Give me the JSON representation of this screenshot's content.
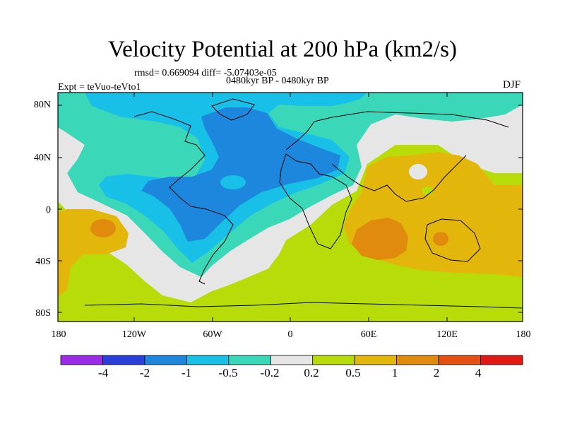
{
  "header": {
    "title": "Velocity Potential at 200 hPa (km2/s)",
    "stats": "rmsd= 0.669094 diff= -5.07403e-05",
    "period": "0480kyr BP - 0480kyr BP",
    "experiment": "Expt = teVuo-teVto1",
    "season": "DJF"
  },
  "axes": {
    "lat_labels": [
      "80N",
      "40N",
      "0",
      "40S",
      "80S"
    ],
    "lon_labels": [
      "180",
      "120W",
      "60W",
      "0",
      "60E",
      "120E",
      "180"
    ]
  },
  "colorbar": {
    "labels": [
      "-4",
      "-2",
      "-1",
      "-0.5",
      "-0.2",
      "0.2",
      "0.5",
      "1",
      "2",
      "4"
    ],
    "colors": [
      "#9b2be6",
      "#2a3fd9",
      "#1c87dd",
      "#18bfe6",
      "#3ad7b8",
      "#e6e6e6",
      "#b8dc0a",
      "#e3b60c",
      "#e08a0e",
      "#e3500f",
      "#e21912"
    ]
  }
}
